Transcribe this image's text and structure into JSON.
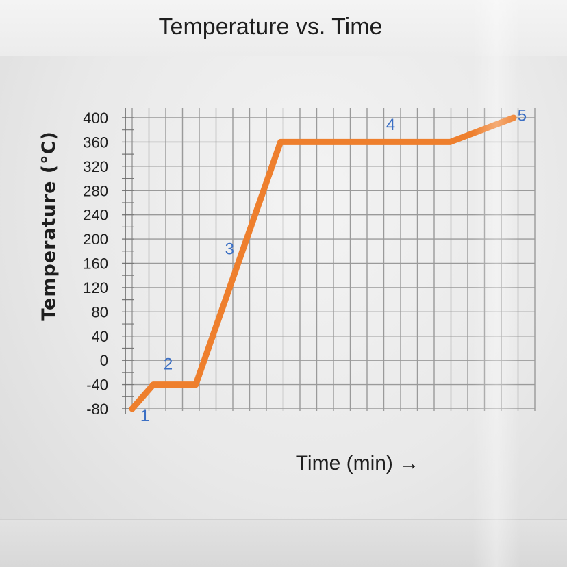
{
  "chart_data": {
    "type": "line",
    "title": "Temperature vs. Time",
    "xlabel": "Time (min) →",
    "ylabel": "Temperature (°C)",
    "ylim": [
      -80,
      400
    ],
    "yticks": [
      400,
      360,
      320,
      280,
      240,
      200,
      160,
      120,
      80,
      40,
      0,
      -40,
      -80
    ],
    "grid": true,
    "series": [
      {
        "color": "#ee7f2d",
        "points": [
          {
            "x": 0,
            "y": -80
          },
          {
            "x": 1,
            "y": -40
          },
          {
            "x": 3,
            "y": -40
          },
          {
            "x": 7,
            "y": 360
          },
          {
            "x": 15,
            "y": 360
          },
          {
            "x": 18,
            "y": 400
          }
        ]
      }
    ],
    "annotations": [
      {
        "text": "1",
        "x": 0.6,
        "y": -90
      },
      {
        "text": "2",
        "x": 1.7,
        "y": -5
      },
      {
        "text": "3",
        "x": 4.6,
        "y": 185
      },
      {
        "text": "4",
        "x": 12.2,
        "y": 390
      },
      {
        "text": "5",
        "x": 18.4,
        "y": 405
      }
    ]
  }
}
